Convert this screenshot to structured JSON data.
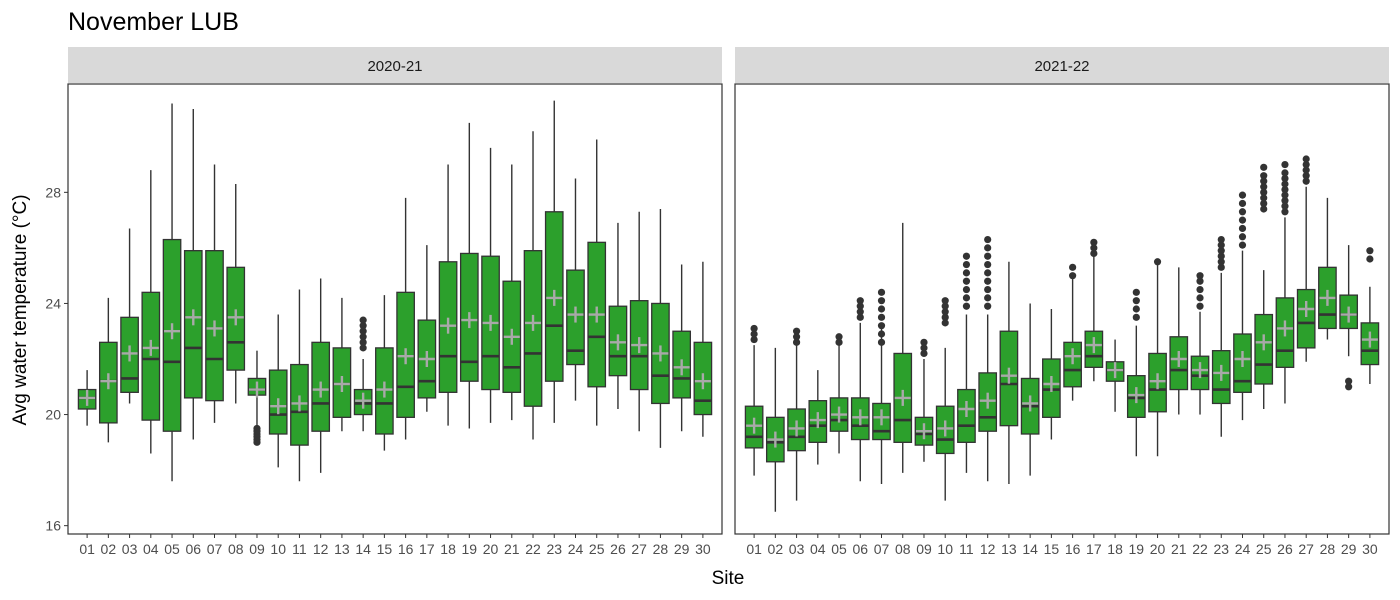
{
  "chart_data": {
    "type": "boxplot",
    "title": "November LUB",
    "xlabel": "Site",
    "ylabel": "Avg water temperature (°C)",
    "ylim": [
      15.7,
      31.9
    ],
    "yticks": [
      16,
      20,
      24,
      28
    ],
    "grid": false,
    "legend": "none",
    "box_color": "#2ca02c",
    "mean_marker_color": "#a9a9a9",
    "categories": [
      "01",
      "02",
      "03",
      "04",
      "05",
      "06",
      "07",
      "08",
      "09",
      "10",
      "11",
      "12",
      "13",
      "14",
      "15",
      "16",
      "17",
      "18",
      "19",
      "20",
      "21",
      "22",
      "23",
      "24",
      "25",
      "26",
      "27",
      "28",
      "29",
      "30"
    ],
    "panels": [
      {
        "label": "2020-21",
        "q1": [
          20.2,
          19.7,
          20.8,
          19.8,
          19.4,
          20.6,
          20.5,
          21.6,
          20.7,
          19.3,
          18.9,
          19.4,
          19.9,
          20.0,
          19.3,
          19.9,
          20.6,
          20.8,
          21.2,
          20.9,
          20.8,
          20.3,
          21.2,
          21.8,
          21.0,
          21.4,
          20.9,
          20.4,
          20.6,
          20.0
        ],
        "median": [
          20.6,
          21.2,
          21.3,
          22.0,
          21.9,
          22.4,
          22.0,
          22.6,
          20.9,
          20.0,
          20.1,
          20.4,
          21.1,
          20.4,
          20.4,
          21.0,
          21.2,
          22.1,
          21.9,
          22.1,
          21.7,
          22.2,
          23.2,
          22.3,
          22.8,
          22.1,
          22.1,
          21.4,
          21.3,
          20.5
        ],
        "q3": [
          20.9,
          22.6,
          23.5,
          24.4,
          26.3,
          25.9,
          25.9,
          25.3,
          21.3,
          21.6,
          21.8,
          22.6,
          22.4,
          20.9,
          22.4,
          24.4,
          23.4,
          25.5,
          25.8,
          25.7,
          24.8,
          25.9,
          27.3,
          25.2,
          26.2,
          23.9,
          24.1,
          24.0,
          23.0,
          22.6
        ],
        "lower": [
          19.6,
          19.0,
          20.4,
          18.6,
          17.6,
          19.1,
          19.7,
          20.4,
          19.4,
          18.1,
          17.6,
          17.9,
          19.4,
          19.4,
          18.7,
          19.1,
          20.1,
          19.6,
          19.5,
          19.7,
          19.8,
          19.1,
          19.7,
          20.5,
          19.6,
          20.2,
          19.4,
          18.8,
          19.4,
          19.2
        ],
        "upper": [
          21.6,
          24.2,
          26.7,
          28.8,
          31.2,
          31.0,
          29.0,
          28.3,
          22.3,
          23.6,
          24.5,
          24.9,
          24.2,
          22.0,
          24.3,
          27.8,
          26.1,
          29.0,
          30.5,
          29.6,
          29.0,
          30.2,
          31.3,
          28.5,
          29.9,
          26.9,
          27.3,
          27.4,
          25.4,
          25.5
        ],
        "mean": [
          20.6,
          21.2,
          22.2,
          22.4,
          23.0,
          23.5,
          23.1,
          23.5,
          20.9,
          20.3,
          20.4,
          20.9,
          21.1,
          20.5,
          20.9,
          22.1,
          22.0,
          23.2,
          23.4,
          23.3,
          22.8,
          23.3,
          24.2,
          23.6,
          23.6,
          22.6,
          22.5,
          22.2,
          21.7,
          21.2
        ],
        "outliers": [
          [],
          [],
          [],
          [],
          [],
          [],
          [],
          [],
          [
            19.0,
            19.1,
            19.2,
            19.3,
            19.4,
            19.5
          ],
          [],
          [],
          [],
          [],
          [
            22.4,
            22.6,
            22.8,
            23.0,
            23.2,
            23.4
          ],
          [],
          [],
          [],
          [],
          [],
          [],
          [],
          [],
          [],
          [],
          [],
          [],
          [],
          [],
          [],
          []
        ]
      },
      {
        "label": "2021-22",
        "q1": [
          18.8,
          18.3,
          18.7,
          19.0,
          19.4,
          19.1,
          19.1,
          19.0,
          18.9,
          18.6,
          19.0,
          19.4,
          19.6,
          19.3,
          19.9,
          21.0,
          21.7,
          21.2,
          19.9,
          20.1,
          20.9,
          20.9,
          20.4,
          20.8,
          21.1,
          21.7,
          22.4,
          23.1,
          23.1,
          21.8
        ],
        "median": [
          19.2,
          19.0,
          19.2,
          19.6,
          19.8,
          19.6,
          19.4,
          19.8,
          19.3,
          19.1,
          19.6,
          19.9,
          21.1,
          20.3,
          20.9,
          21.6,
          22.1,
          21.6,
          20.6,
          20.9,
          21.6,
          21.4,
          20.9,
          21.2,
          21.8,
          22.3,
          23.3,
          23.6,
          23.6,
          22.3
        ],
        "q3": [
          20.3,
          19.9,
          20.2,
          20.5,
          20.6,
          20.6,
          20.4,
          22.2,
          19.9,
          20.3,
          20.9,
          21.5,
          23.0,
          21.3,
          22.0,
          22.6,
          23.0,
          21.9,
          21.4,
          22.2,
          22.8,
          22.1,
          22.3,
          22.9,
          23.6,
          24.2,
          24.5,
          25.3,
          24.3,
          23.3
        ],
        "lower": [
          17.8,
          16.5,
          16.9,
          18.2,
          18.6,
          17.6,
          17.5,
          17.9,
          18.3,
          16.9,
          17.9,
          17.6,
          17.5,
          17.8,
          19.1,
          20.5,
          21.2,
          20.1,
          18.5,
          18.5,
          20.0,
          20.0,
          19.2,
          19.8,
          20.2,
          20.4,
          21.9,
          22.7,
          22.1,
          21.1
        ],
        "upper": [
          22.5,
          22.4,
          22.5,
          21.6,
          22.5,
          23.3,
          23.3,
          26.9,
          22.0,
          22.4,
          23.6,
          23.6,
          25.5,
          24.0,
          23.8,
          24.9,
          25.8,
          22.7,
          23.2,
          25.4,
          25.3,
          23.7,
          25.1,
          25.9,
          25.2,
          27.1,
          28.2,
          27.8,
          26.1,
          24.6
        ],
        "mean": [
          19.6,
          19.1,
          19.5,
          19.8,
          20.0,
          19.9,
          19.9,
          20.6,
          19.4,
          19.5,
          20.2,
          20.5,
          21.4,
          20.4,
          21.1,
          22.1,
          22.5,
          21.6,
          20.7,
          21.2,
          22.0,
          21.6,
          21.5,
          22.0,
          22.6,
          23.1,
          23.8,
          24.2,
          23.6,
          22.7
        ],
        "outliers": [
          [
            22.7,
            22.9,
            23.1
          ],
          [],
          [
            22.6,
            22.8,
            23.0
          ],
          [],
          [
            22.6,
            22.8
          ],
          [
            23.5,
            23.7,
            23.9,
            24.1
          ],
          [
            22.6,
            22.9,
            23.2,
            23.5,
            23.8,
            24.1,
            24.4
          ],
          [],
          [
            22.2,
            22.4,
            22.6
          ],
          [
            23.3,
            23.5,
            23.7,
            23.9,
            24.1
          ],
          [
            23.9,
            24.2,
            24.5,
            24.8,
            25.1,
            25.4,
            25.7
          ],
          [
            23.9,
            24.2,
            24.5,
            24.8,
            25.1,
            25.4,
            25.7,
            26.0,
            26.3
          ],
          [],
          [],
          [],
          [
            25.0,
            25.3
          ],
          [
            25.8,
            26.0,
            26.2
          ],
          [],
          [
            23.5,
            23.8,
            24.1,
            24.4
          ],
          [
            25.5
          ],
          [],
          [
            23.9,
            24.2,
            24.5,
            24.8,
            25.0
          ],
          [
            25.3,
            25.5,
            25.7,
            25.9,
            26.1,
            26.3
          ],
          [
            26.1,
            26.4,
            26.7,
            27.0,
            27.3,
            27.6,
            27.9
          ],
          [
            27.4,
            27.6,
            27.8,
            28.0,
            28.2,
            28.4,
            28.6,
            28.9
          ],
          [
            27.3,
            27.5,
            27.7,
            27.9,
            28.1,
            28.3,
            28.5,
            28.7,
            29.0
          ],
          [
            28.4,
            28.6,
            28.8,
            29.0,
            29.2
          ],
          [],
          [
            21.0,
            21.2
          ],
          [
            25.6,
            25.9
          ]
        ]
      }
    ]
  }
}
